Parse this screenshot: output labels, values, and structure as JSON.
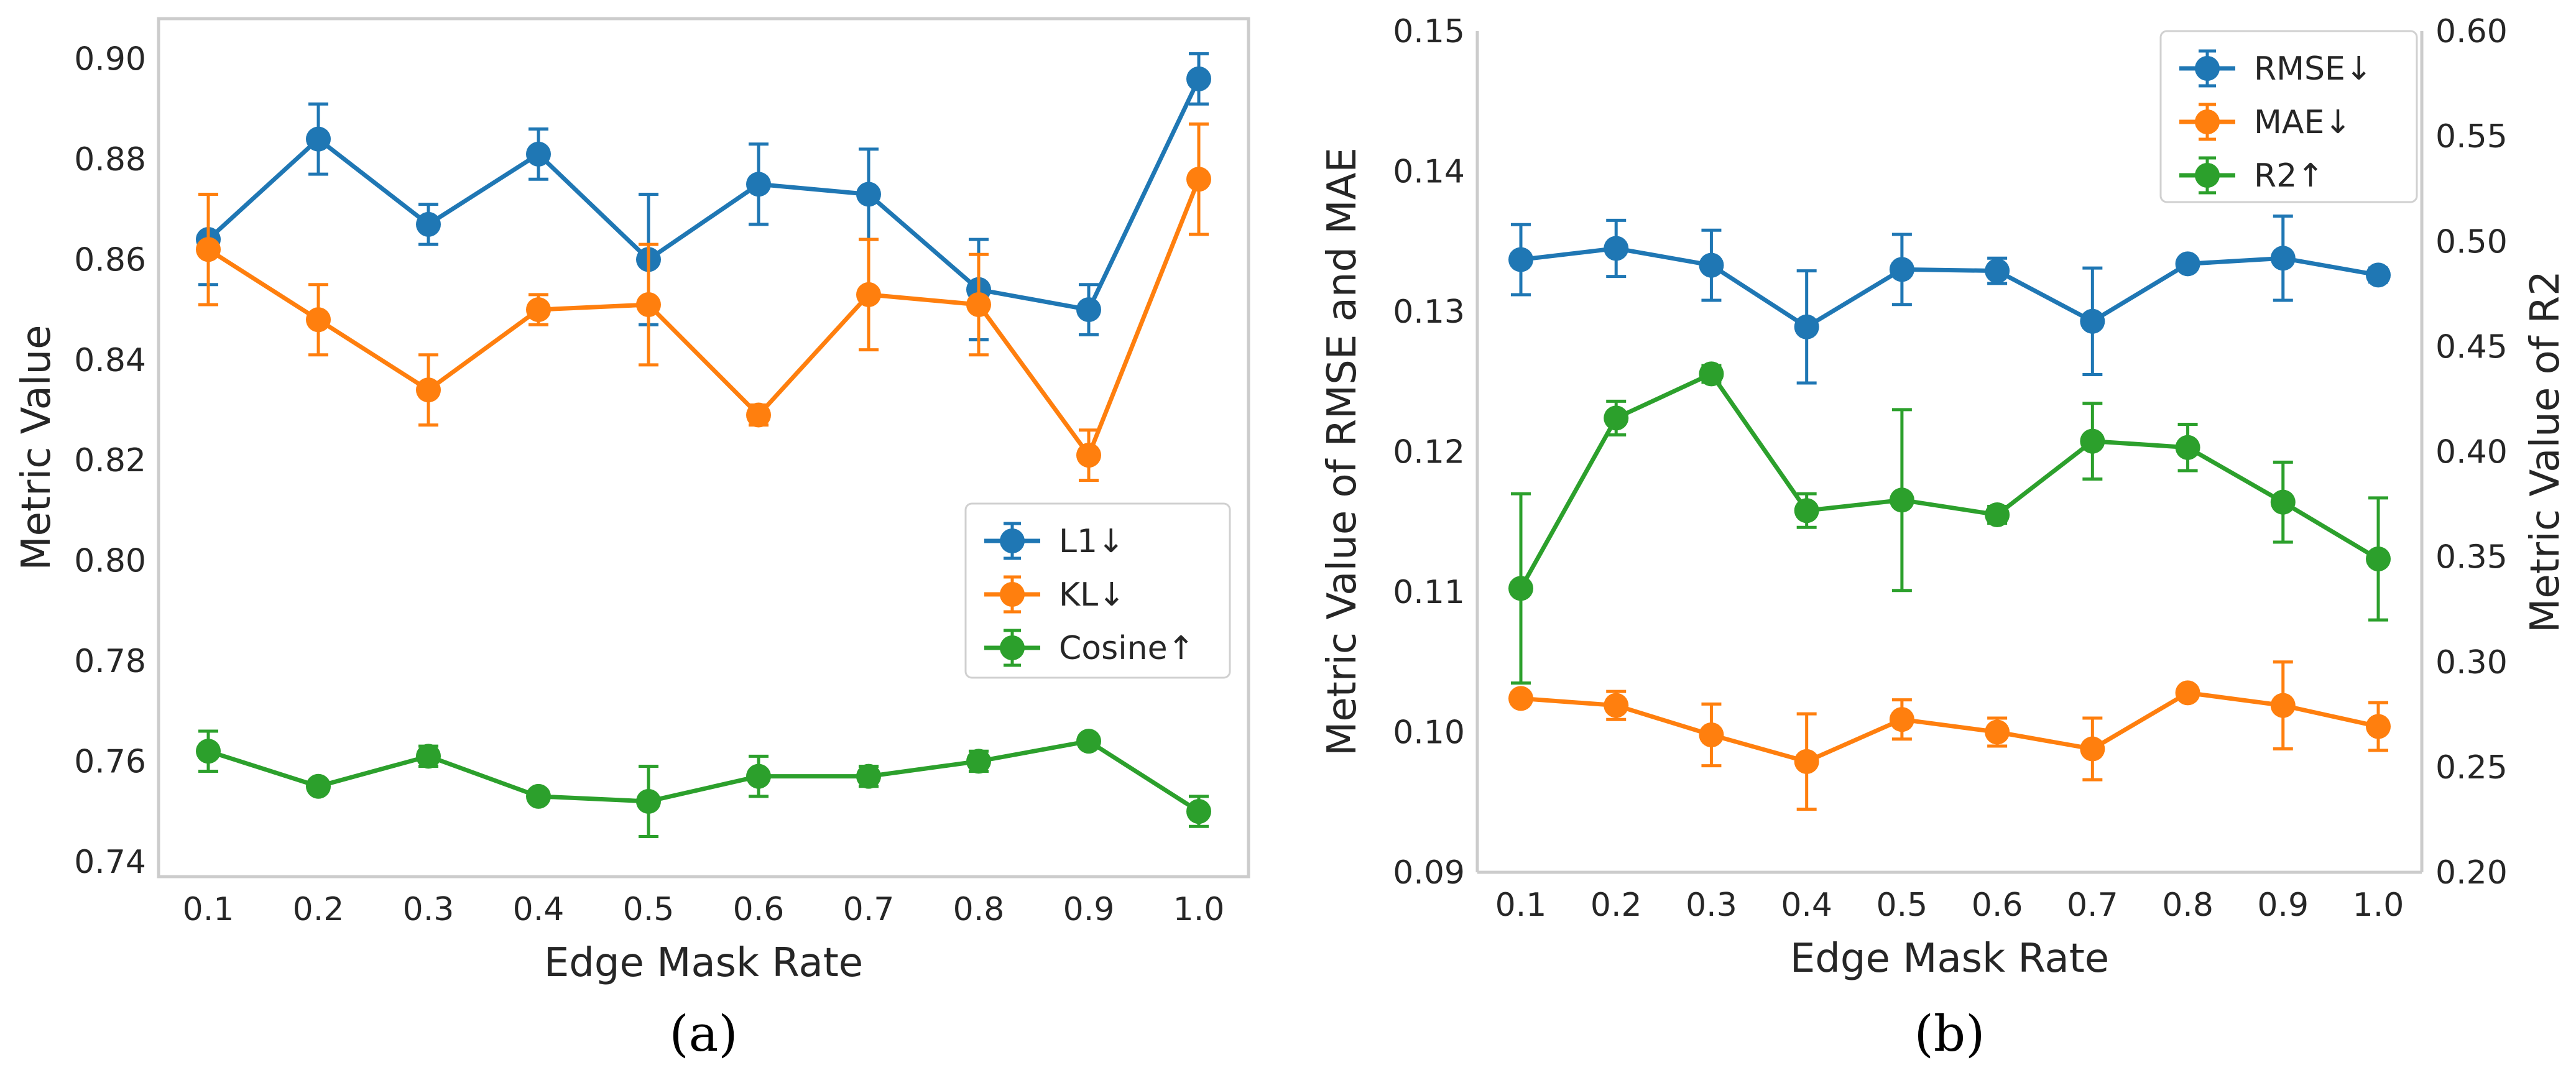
{
  "chart_data": [
    {
      "type": "line",
      "panel_label": "(a)",
      "xlabel": "Edge Mask Rate",
      "ylabel": "Metric Value",
      "categories": [
        "0.1",
        "0.2",
        "0.3",
        "0.4",
        "0.5",
        "0.6",
        "0.7",
        "0.8",
        "0.9",
        "1.0"
      ],
      "ylim": [
        0.737,
        0.908
      ],
      "yticks": [
        "0.74",
        "0.76",
        "0.78",
        "0.80",
        "0.82",
        "0.84",
        "0.86",
        "0.88",
        "0.90"
      ],
      "grid": false,
      "legend_position": "center-right",
      "series": [
        {
          "name": "L1↓",
          "color": "#1f77b4",
          "values": [
            0.864,
            0.884,
            0.867,
            0.881,
            0.86,
            0.875,
            0.873,
            0.854,
            0.85,
            0.896
          ],
          "errors": [
            0.009,
            0.007,
            0.004,
            0.005,
            0.013,
            0.008,
            0.009,
            0.01,
            0.005,
            0.005
          ]
        },
        {
          "name": "KL↓",
          "color": "#ff7f0e",
          "values": [
            0.862,
            0.848,
            0.834,
            0.85,
            0.851,
            0.829,
            0.853,
            0.851,
            0.821,
            0.876
          ],
          "errors": [
            0.011,
            0.007,
            0.007,
            0.003,
            0.012,
            0.002,
            0.011,
            0.01,
            0.005,
            0.011
          ]
        },
        {
          "name": "Cosine↑",
          "color": "#2ca02c",
          "values": [
            0.762,
            0.755,
            0.761,
            0.753,
            0.752,
            0.757,
            0.757,
            0.76,
            0.764,
            0.75
          ],
          "errors": [
            0.004,
            0.001,
            0.002,
            0.001,
            0.007,
            0.004,
            0.002,
            0.002,
            0.001,
            0.003
          ]
        }
      ]
    },
    {
      "type": "line",
      "panel_label": "(b)",
      "xlabel": "Edge Mask Rate",
      "ylabel": "Metric Value of RMSE and MAE",
      "ylabel_right": "Metric Value of R2",
      "categories": [
        "0.1",
        "0.2",
        "0.3",
        "0.4",
        "0.5",
        "0.6",
        "0.7",
        "0.8",
        "0.9",
        "1.0"
      ],
      "ylim": [
        0.09,
        0.15
      ],
      "yticks": [
        "0.09",
        "0.10",
        "0.11",
        "0.12",
        "0.13",
        "0.14",
        "0.15"
      ],
      "ylim_right": [
        0.2,
        0.6
      ],
      "yticks_right": [
        "0.20",
        "0.25",
        "0.30",
        "0.35",
        "0.40",
        "0.45",
        "0.50",
        "0.55",
        "0.60"
      ],
      "grid": false,
      "legend_position": "top-right",
      "series": [
        {
          "name": "RMSE↓",
          "color": "#1f77b4",
          "axis": "left",
          "values": [
            0.1337,
            0.1345,
            0.1333,
            0.1289,
            0.133,
            0.1329,
            0.1293,
            0.1334,
            0.1338,
            0.1326
          ],
          "errors": [
            0.0025,
            0.002,
            0.0025,
            0.004,
            0.0025,
            0.0009,
            0.0038,
            0.0002,
            0.003,
            0.0005
          ]
        },
        {
          "name": "MAE↓",
          "color": "#ff7f0e",
          "axis": "left",
          "values": [
            0.1024,
            0.1019,
            0.0998,
            0.0979,
            0.1009,
            0.1,
            0.0988,
            0.1028,
            0.1019,
            0.1004
          ],
          "errors": [
            0.0003,
            0.001,
            0.0022,
            0.0034,
            0.0014,
            0.001,
            0.0022,
            0.0002,
            0.0031,
            0.0017
          ]
        },
        {
          "name": "R2↑",
          "color": "#2ca02c",
          "axis": "right",
          "values": [
            0.335,
            0.416,
            0.437,
            0.372,
            0.377,
            0.37,
            0.405,
            0.402,
            0.376,
            0.349
          ],
          "errors": [
            0.045,
            0.008,
            0.004,
            0.008,
            0.043,
            0.004,
            0.018,
            0.011,
            0.019,
            0.029
          ]
        }
      ]
    }
  ]
}
